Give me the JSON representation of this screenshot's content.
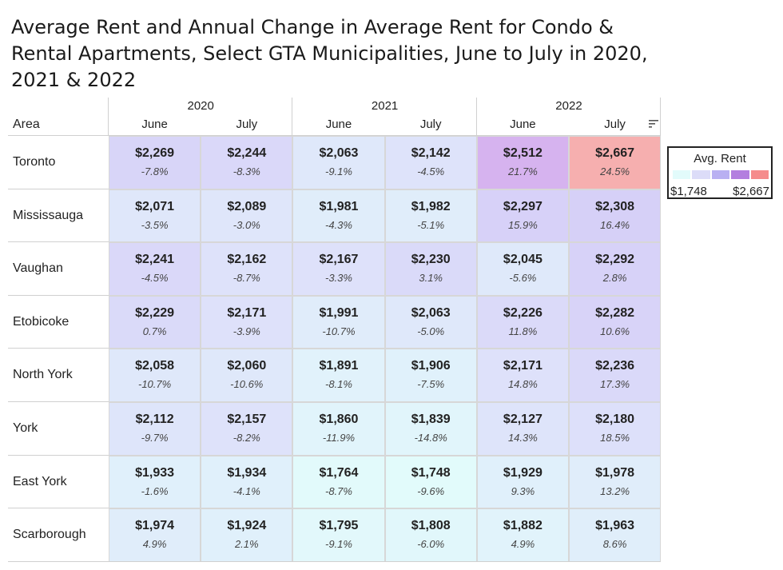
{
  "title": "Average Rent and Annual Change in Average Rent for Condo & Rental Apartments, Select GTA Municipalities, June to July in 2020, 2021 & 2022",
  "legend": {
    "title": "Avg. Rent",
    "min_label": "$1,748",
    "max_label": "$2,667",
    "colors": [
      "#e2fbfb",
      "#dcdcf8",
      "#b9b0f2",
      "#b37fdf",
      "#f58c8c"
    ]
  },
  "chart_data": {
    "type": "table",
    "title": "Average Rent and Annual Change in Average Rent for Condo & Rental Apartments, Select GTA Municipalities, June to July in 2020, 2021 & 2022",
    "row_header": "Area",
    "years": [
      "2020",
      "2021",
      "2022"
    ],
    "months": [
      "June",
      "July"
    ],
    "rows": [
      {
        "area": "Toronto",
        "cells": [
          {
            "value": "$2,269",
            "change": "-7.8%",
            "rent": 2269
          },
          {
            "value": "$2,244",
            "change": "-8.3%",
            "rent": 2244
          },
          {
            "value": "$2,063",
            "change": "-9.1%",
            "rent": 2063
          },
          {
            "value": "$2,142",
            "change": "-4.5%",
            "rent": 2142
          },
          {
            "value": "$2,512",
            "change": "21.7%",
            "rent": 2512
          },
          {
            "value": "$2,667",
            "change": "24.5%",
            "rent": 2667
          }
        ]
      },
      {
        "area": "Mississauga",
        "cells": [
          {
            "value": "$2,071",
            "change": "-3.5%",
            "rent": 2071
          },
          {
            "value": "$2,089",
            "change": "-3.0%",
            "rent": 2089
          },
          {
            "value": "$1,981",
            "change": "-4.3%",
            "rent": 1981
          },
          {
            "value": "$1,982",
            "change": "-5.1%",
            "rent": 1982
          },
          {
            "value": "$2,297",
            "change": "15.9%",
            "rent": 2297
          },
          {
            "value": "$2,308",
            "change": "16.4%",
            "rent": 2308
          }
        ]
      },
      {
        "area": "Vaughan",
        "cells": [
          {
            "value": "$2,241",
            "change": "-4.5%",
            "rent": 2241
          },
          {
            "value": "$2,162",
            "change": "-8.7%",
            "rent": 2162
          },
          {
            "value": "$2,167",
            "change": "-3.3%",
            "rent": 2167
          },
          {
            "value": "$2,230",
            "change": "3.1%",
            "rent": 2230
          },
          {
            "value": "$2,045",
            "change": "-5.6%",
            "rent": 2045
          },
          {
            "value": "$2,292",
            "change": "2.8%",
            "rent": 2292
          }
        ]
      },
      {
        "area": "Etobicoke",
        "cells": [
          {
            "value": "$2,229",
            "change": "0.7%",
            "rent": 2229
          },
          {
            "value": "$2,171",
            "change": "-3.9%",
            "rent": 2171
          },
          {
            "value": "$1,991",
            "change": "-10.7%",
            "rent": 1991
          },
          {
            "value": "$2,063",
            "change": "-5.0%",
            "rent": 2063
          },
          {
            "value": "$2,226",
            "change": "11.8%",
            "rent": 2226
          },
          {
            "value": "$2,282",
            "change": "10.6%",
            "rent": 2282
          }
        ]
      },
      {
        "area": "North York",
        "cells": [
          {
            "value": "$2,058",
            "change": "-10.7%",
            "rent": 2058
          },
          {
            "value": "$2,060",
            "change": "-10.6%",
            "rent": 2060
          },
          {
            "value": "$1,891",
            "change": "-8.1%",
            "rent": 1891
          },
          {
            "value": "$1,906",
            "change": "-7.5%",
            "rent": 1906
          },
          {
            "value": "$2,171",
            "change": "14.8%",
            "rent": 2171
          },
          {
            "value": "$2,236",
            "change": "17.3%",
            "rent": 2236
          }
        ]
      },
      {
        "area": "York",
        "cells": [
          {
            "value": "$2,112",
            "change": "-9.7%",
            "rent": 2112
          },
          {
            "value": "$2,157",
            "change": "-8.2%",
            "rent": 2157
          },
          {
            "value": "$1,860",
            "change": "-11.9%",
            "rent": 1860
          },
          {
            "value": "$1,839",
            "change": "-14.8%",
            "rent": 1839
          },
          {
            "value": "$2,127",
            "change": "14.3%",
            "rent": 2127
          },
          {
            "value": "$2,180",
            "change": "18.5%",
            "rent": 2180
          }
        ]
      },
      {
        "area": "East York",
        "cells": [
          {
            "value": "$1,933",
            "change": "-1.6%",
            "rent": 1933
          },
          {
            "value": "$1,934",
            "change": "-4.1%",
            "rent": 1934
          },
          {
            "value": "$1,764",
            "change": "-8.7%",
            "rent": 1764
          },
          {
            "value": "$1,748",
            "change": "-9.6%",
            "rent": 1748
          },
          {
            "value": "$1,929",
            "change": "9.3%",
            "rent": 1929
          },
          {
            "value": "$1,978",
            "change": "13.2%",
            "rent": 1978
          }
        ]
      },
      {
        "area": "Scarborough",
        "cells": [
          {
            "value": "$1,974",
            "change": "4.9%",
            "rent": 1974
          },
          {
            "value": "$1,924",
            "change": "2.1%",
            "rent": 1924
          },
          {
            "value": "$1,795",
            "change": "-9.1%",
            "rent": 1795
          },
          {
            "value": "$1,808",
            "change": "-6.0%",
            "rent": 1808
          },
          {
            "value": "$1,882",
            "change": "4.9%",
            "rent": 1882
          },
          {
            "value": "$1,963",
            "change": "8.6%",
            "rent": 1963
          }
        ]
      }
    ]
  }
}
